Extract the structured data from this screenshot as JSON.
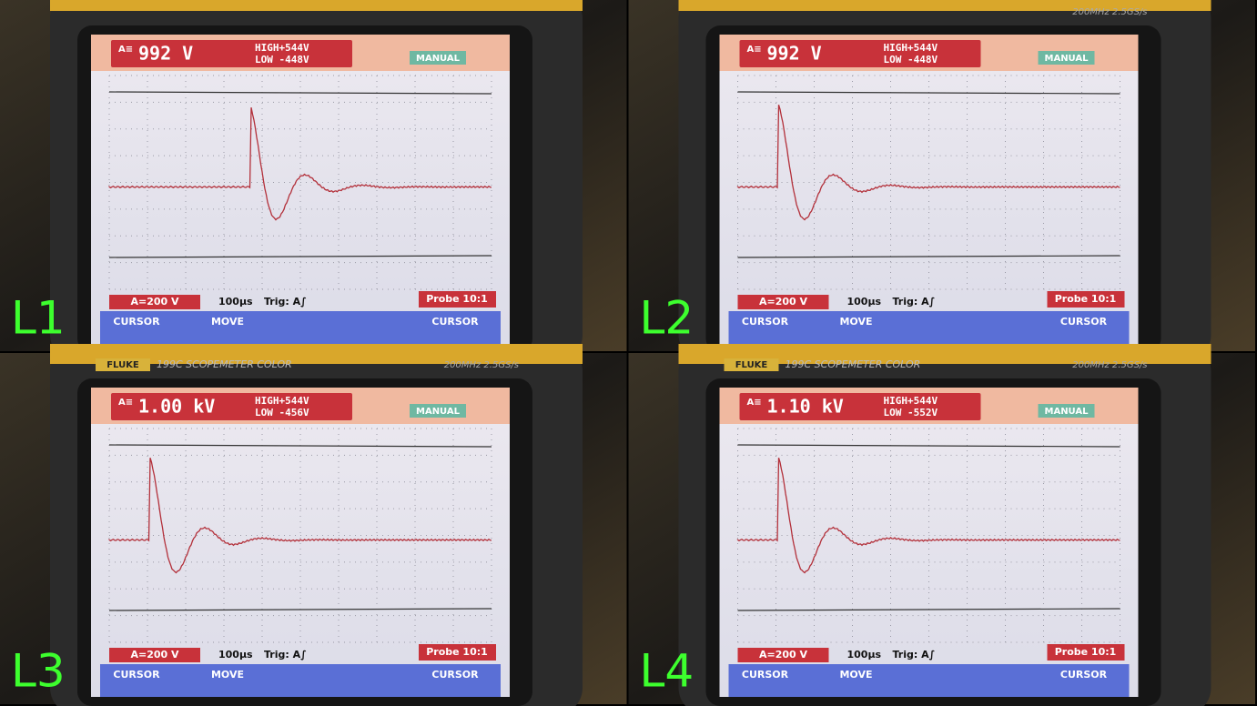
{
  "panels": [
    {
      "label": "L1",
      "reading": "992 V",
      "high": "HIGH+544V",
      "low": "LOW -448V",
      "mode": "MANUAL",
      "scale": "A=200 V",
      "timebase": "100µs",
      "trigger": "Trig: A∫",
      "probe": "Probe 10:1",
      "softkeys": [
        "CURSOR",
        "MOVE",
        "CURSOR"
      ]
    },
    {
      "label": "L2",
      "reading": "992 V",
      "high": "HIGH+544V",
      "low": "LOW -448V",
      "mode": "MANUAL",
      "scale": "A=200 V",
      "timebase": "100µs",
      "trigger": "Trig: A∫",
      "probe": "Probe 10:1",
      "softkeys": [
        "CURSOR",
        "MOVE",
        "CURSOR"
      ],
      "spec": "200MHz 2.5GS/s"
    },
    {
      "label": "L3",
      "reading": "1.00 kV",
      "high": "HIGH+544V",
      "low": "LOW -456V",
      "mode": "MANUAL",
      "scale": "A=200 V",
      "timebase": "100µs",
      "trigger": "Trig: A∫",
      "probe": "Probe 10:1",
      "softkeys": [
        "CURSOR",
        "MOVE",
        "CURSOR"
      ],
      "brand": "FLUKE",
      "model": "199C SCOPEMETER COLOR",
      "spec": "200MHz 2.5GS/s"
    },
    {
      "label": "L4",
      "reading": "1.10 kV",
      "high": "HIGH+544V",
      "low": "LOW -552V",
      "mode": "MANUAL",
      "scale": "A=200 V",
      "timebase": "100µs",
      "trigger": "Trig: A∫",
      "probe": "Probe 10:1",
      "softkeys": [
        "CURSOR",
        "MOVE",
        "CURSOR"
      ],
      "brand": "FLUKE",
      "model": "199C SCOPEMETER COLOR",
      "spec": "200MHz 2.5GS/s"
    }
  ]
}
